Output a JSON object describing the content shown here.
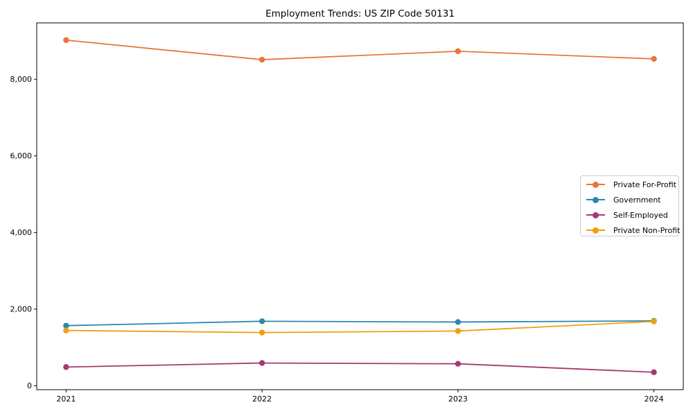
{
  "chart_data": {
    "type": "line",
    "title": "Employment Trends: US ZIP Code 50131",
    "x": [
      2021,
      2022,
      2023,
      2024
    ],
    "x_tick_labels": [
      "2021",
      "2022",
      "2023",
      "2024"
    ],
    "series": [
      {
        "name": "Private For-Profit",
        "color": "#e8763c",
        "values": [
          9020,
          8510,
          8730,
          8530
        ]
      },
      {
        "name": "Government",
        "color": "#2e86ab",
        "values": [
          1570,
          1685,
          1665,
          1695
        ]
      },
      {
        "name": "Self-Employed",
        "color": "#a23b72",
        "values": [
          490,
          595,
          575,
          355
        ]
      },
      {
        "name": "Private Non-Profit",
        "color": "#f0a00e",
        "values": [
          1445,
          1390,
          1430,
          1680
        ]
      }
    ],
    "yticks": [
      0,
      2000,
      4000,
      6000,
      8000
    ],
    "ytick_labels": [
      "0",
      "2,000",
      "4,000",
      "6,000",
      "8,000"
    ],
    "xlim": [
      2020.85,
      2024.15
    ],
    "ylim": [
      -100,
      9470
    ],
    "xlabel": "",
    "ylabel": "",
    "grid": false,
    "legend_position": "center right",
    "marker": "circle",
    "axis_color": "#000000"
  }
}
